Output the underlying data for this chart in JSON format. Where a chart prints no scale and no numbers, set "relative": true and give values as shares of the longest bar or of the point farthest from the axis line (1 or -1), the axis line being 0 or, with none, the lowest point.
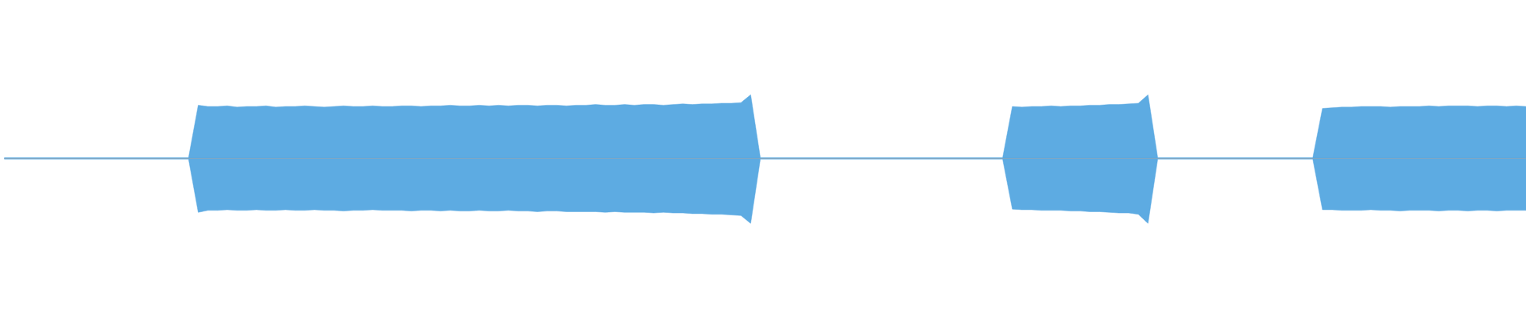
{
  "chart_data": {
    "type": "area",
    "relative": true,
    "categories": [
      null,
      null,
      null,
      null,
      null,
      null,
      null,
      null,
      null,
      null,
      null,
      null,
      null,
      null,
      null,
      null,
      null,
      null,
      null,
      null,
      null,
      null,
      null,
      null,
      null,
      null,
      null,
      null,
      null,
      null,
      null,
      null,
      null,
      null,
      null,
      null,
      null,
      null,
      null,
      null,
      null,
      null,
      null,
      null,
      null,
      null,
      null,
      null,
      null,
      null,
      null,
      null,
      null,
      null,
      null,
      null,
      null,
      null,
      null,
      null,
      null,
      null,
      null,
      null,
      null,
      null,
      null,
      null,
      null,
      null,
      null,
      null,
      null,
      null,
      null,
      null,
      null,
      null,
      null,
      null,
      null,
      null,
      null,
      null,
      null,
      null,
      null,
      null,
      null,
      null,
      null,
      null,
      null,
      null,
      null,
      null,
      null,
      null,
      null,
      null,
      null,
      null,
      null,
      null,
      null,
      null,
      null,
      null,
      null,
      null,
      null,
      null,
      null,
      null,
      null,
      null,
      null,
      null,
      null,
      null,
      null,
      null,
      null,
      null,
      null,
      null,
      null,
      null,
      null,
      null,
      null,
      null,
      null,
      null,
      null,
      null,
      null,
      null,
      null,
      null,
      null,
      null,
      null,
      null,
      null,
      null,
      null,
      null,
      null,
      null,
      null,
      null,
      null,
      null,
      null,
      null,
      null,
      null
    ],
    "series": [
      {
        "color": "#5dabe2",
        "values": [
          0.01,
          0.01,
          0.01,
          0.01,
          0.01,
          0.01,
          0.01,
          0.01,
          0.01,
          0.01,
          0.01,
          0.01,
          0.01,
          0.01,
          0.01,
          0.01,
          0.01,
          0.01,
          0.01,
          0.01,
          0.82,
          0.8,
          0.8,
          0.81,
          0.79,
          0.8,
          0.8,
          0.81,
          0.79,
          0.8,
          0.8,
          0.81,
          0.8,
          0.79,
          0.8,
          0.81,
          0.8,
          0.8,
          0.81,
          0.8,
          0.8,
          0.81,
          0.81,
          0.8,
          0.81,
          0.81,
          0.82,
          0.81,
          0.81,
          0.82,
          0.81,
          0.82,
          0.81,
          0.82,
          0.82,
          0.81,
          0.82,
          0.82,
          0.81,
          0.82,
          0.82,
          0.83,
          0.82,
          0.82,
          0.83,
          0.82,
          0.83,
          0.83,
          0.82,
          0.83,
          0.84,
          0.83,
          0.84,
          0.84,
          0.85,
          0.85,
          0.86,
          0.98,
          0.01,
          0.01,
          0.01,
          0.01,
          0.01,
          0.01,
          0.01,
          0.01,
          0.01,
          0.01,
          0.01,
          0.01,
          0.01,
          0.01,
          0.01,
          0.01,
          0.01,
          0.01,
          0.01,
          0.01,
          0.01,
          0.01,
          0.01,
          0.01,
          0.01,
          0.01,
          0.8,
          0.79,
          0.8,
          0.8,
          0.81,
          0.8,
          0.81,
          0.81,
          0.82,
          0.82,
          0.83,
          0.83,
          0.84,
          0.85,
          0.98,
          0.01,
          0.01,
          0.01,
          0.01,
          0.01,
          0.01,
          0.01,
          0.01,
          0.01,
          0.01,
          0.01,
          0.01,
          0.01,
          0.01,
          0.01,
          0.01,
          0.01,
          0.77,
          0.78,
          0.79,
          0.79,
          0.8,
          0.8,
          0.8,
          0.79,
          0.8,
          0.8,
          0.8,
          0.81,
          0.8,
          0.81,
          0.81,
          0.81,
          0.8,
          0.81,
          0.81,
          0.8,
          0.81,
          0.8
        ]
      },
      {
        "color": "#5dabe2",
        "values": [
          -0.01,
          -0.01,
          -0.01,
          -0.01,
          -0.01,
          -0.01,
          -0.01,
          -0.01,
          -0.01,
          -0.01,
          -0.01,
          -0.01,
          -0.01,
          -0.01,
          -0.01,
          -0.01,
          -0.01,
          -0.01,
          -0.01,
          -0.01,
          -0.83,
          -0.8,
          -0.8,
          -0.79,
          -0.8,
          -0.8,
          -0.79,
          -0.8,
          -0.8,
          -0.79,
          -0.8,
          -0.8,
          -0.79,
          -0.8,
          -0.8,
          -0.81,
          -0.8,
          -0.8,
          -0.79,
          -0.8,
          -0.8,
          -0.8,
          -0.81,
          -0.8,
          -0.8,
          -0.81,
          -0.8,
          -0.81,
          -0.81,
          -0.8,
          -0.81,
          -0.81,
          -0.8,
          -0.81,
          -0.81,
          -0.82,
          -0.81,
          -0.81,
          -0.82,
          -0.82,
          -0.82,
          -0.82,
          -0.83,
          -0.82,
          -0.83,
          -0.83,
          -0.83,
          -0.84,
          -0.83,
          -0.84,
          -0.84,
          -0.85,
          -0.85,
          -0.86,
          -0.86,
          -0.87,
          -0.88,
          -1.0,
          -0.01,
          -0.01,
          -0.01,
          -0.01,
          -0.01,
          -0.01,
          -0.01,
          -0.01,
          -0.01,
          -0.01,
          -0.01,
          -0.01,
          -0.01,
          -0.01,
          -0.01,
          -0.01,
          -0.01,
          -0.01,
          -0.01,
          -0.01,
          -0.01,
          -0.01,
          -0.01,
          -0.01,
          -0.01,
          -0.01,
          -0.78,
          -0.79,
          -0.79,
          -0.8,
          -0.8,
          -0.8,
          -0.81,
          -0.81,
          -0.82,
          -0.82,
          -0.83,
          -0.84,
          -0.84,
          -0.86,
          -1.0,
          -0.01,
          -0.01,
          -0.01,
          -0.01,
          -0.01,
          -0.01,
          -0.01,
          -0.01,
          -0.01,
          -0.01,
          -0.01,
          -0.01,
          -0.01,
          -0.01,
          -0.01,
          -0.01,
          -0.01,
          -0.79,
          -0.79,
          -0.8,
          -0.8,
          -0.8,
          -0.79,
          -0.8,
          -0.8,
          -0.81,
          -0.8,
          -0.8,
          -0.8,
          -0.81,
          -0.8,
          -0.8,
          -0.81,
          -0.8,
          -0.8,
          -0.81,
          -0.8,
          -0.8,
          -0.8
        ]
      }
    ]
  }
}
